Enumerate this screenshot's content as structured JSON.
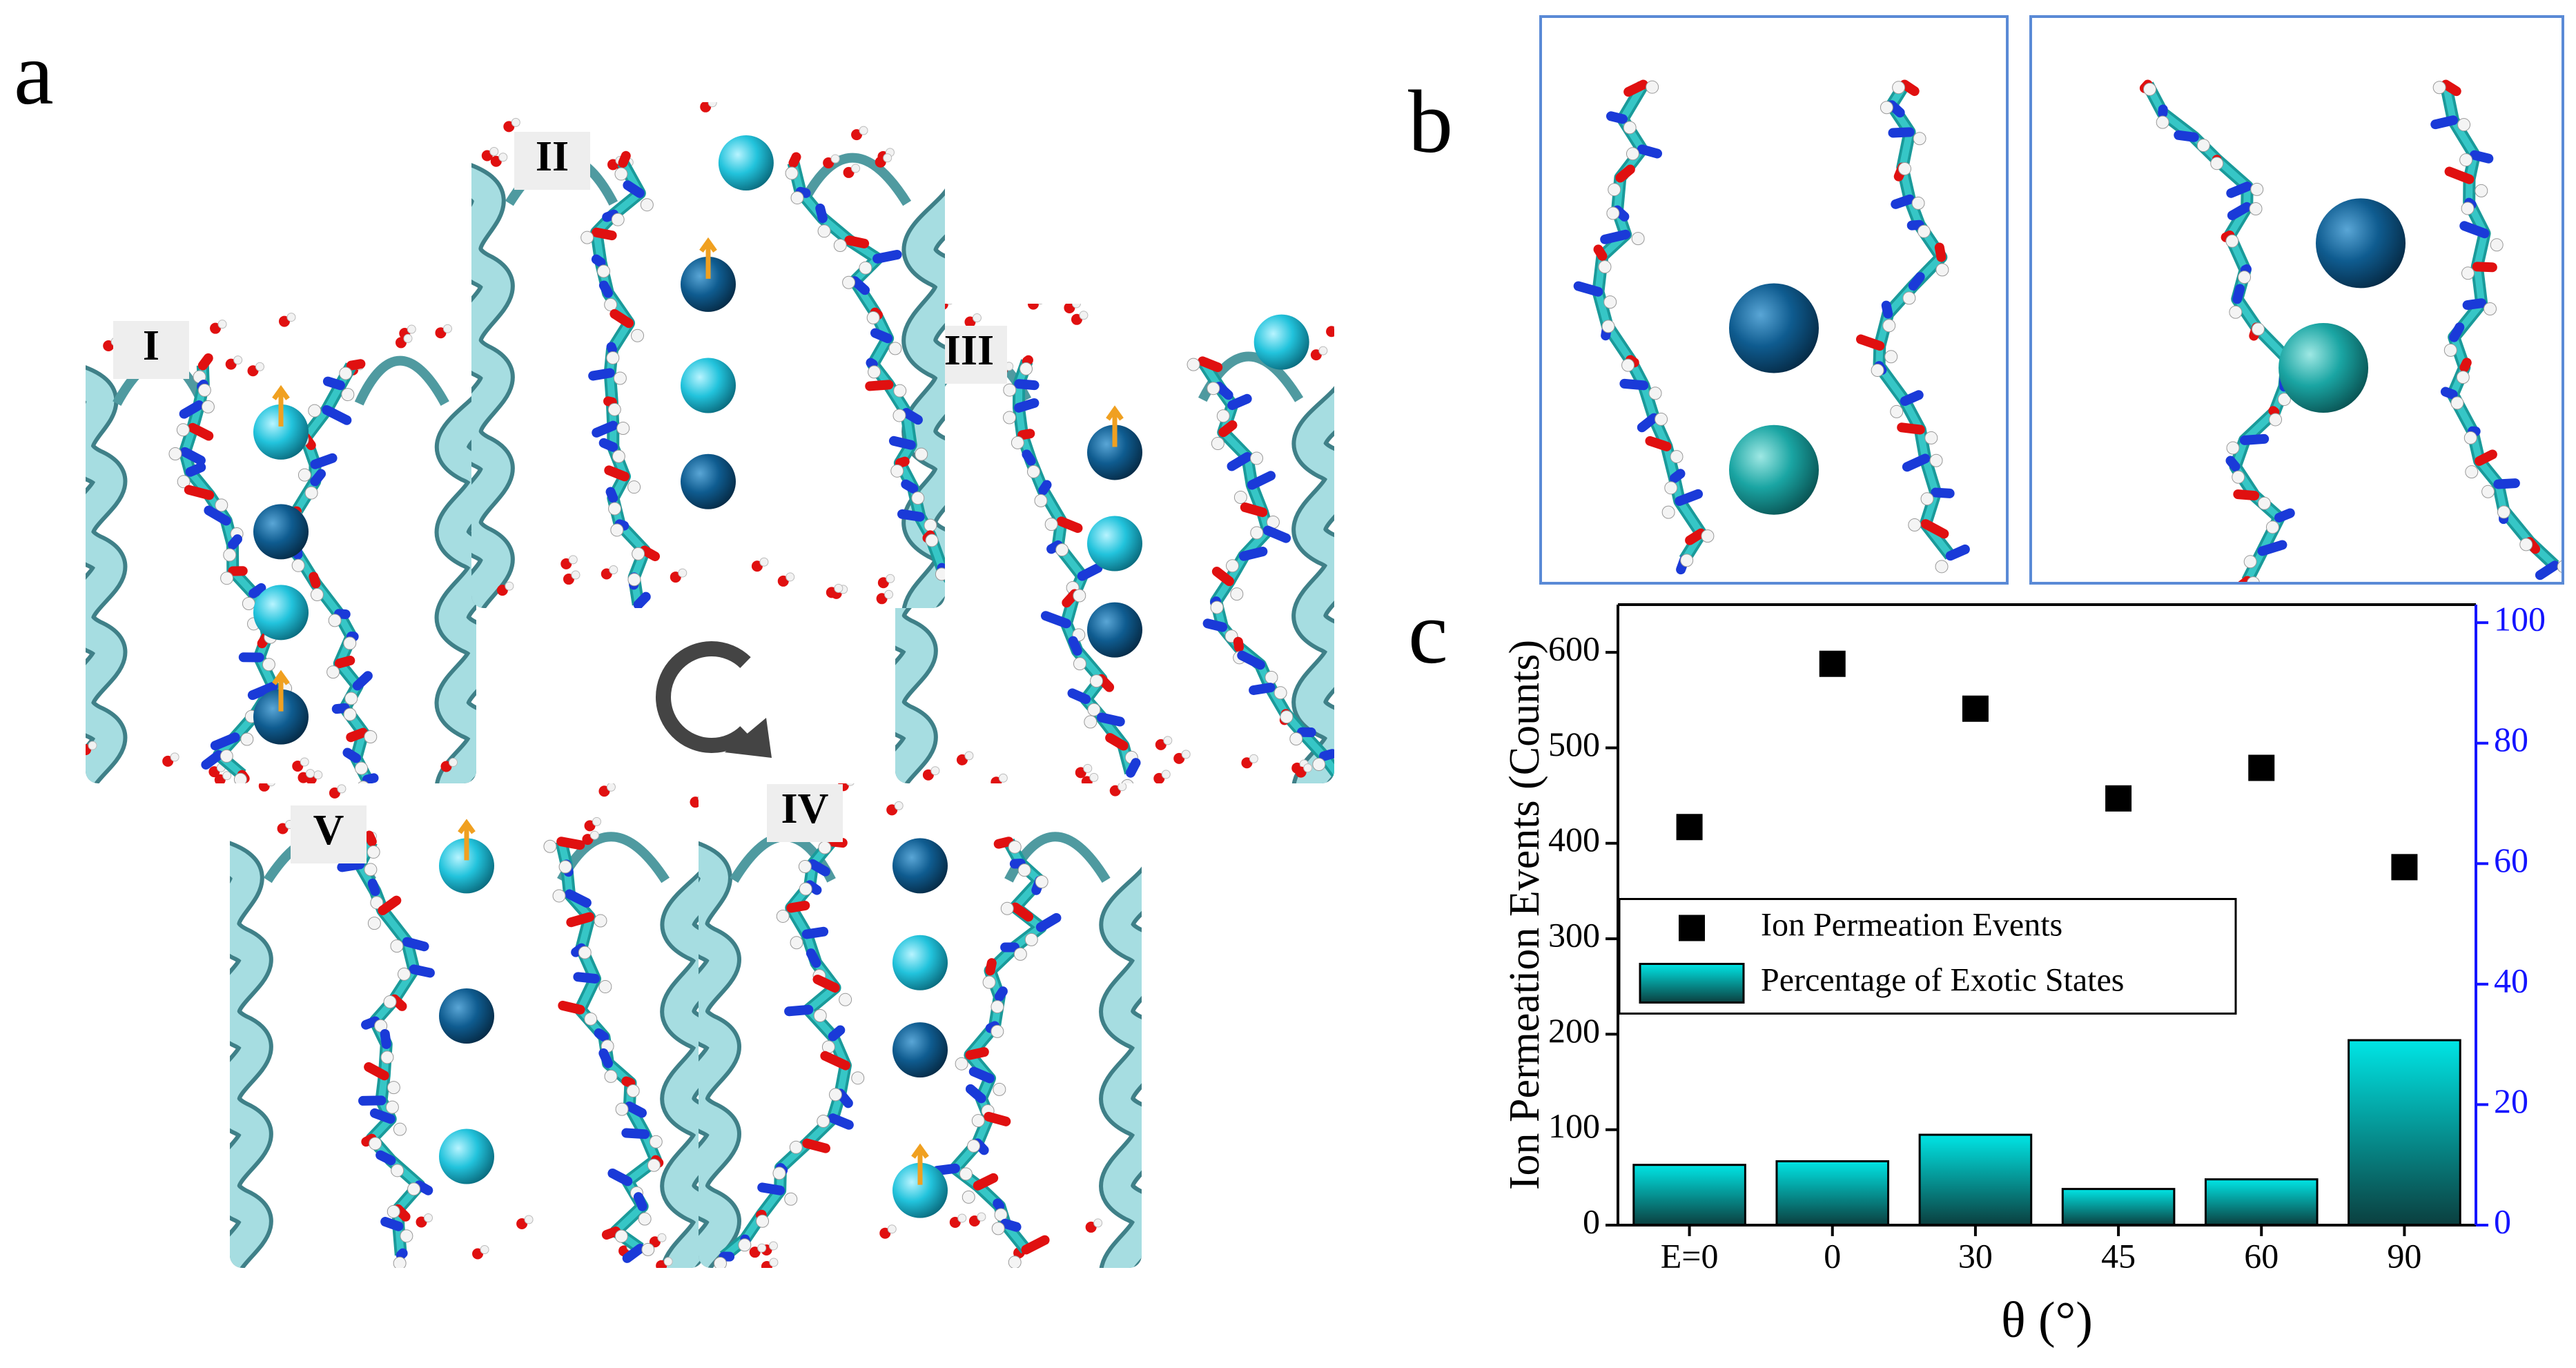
{
  "panel_labels": [
    "a",
    "b",
    "c"
  ],
  "panel_a": {
    "states": [
      "I",
      "II",
      "III",
      "IV",
      "V"
    ]
  },
  "chart_data": {
    "type": "combo",
    "xlabel": "θ (°)",
    "ylabel": "Ion Permeation Events (Counts)",
    "categories": [
      "E=0",
      "0",
      "30",
      "45",
      "60",
      "90"
    ],
    "series": [
      {
        "name": "Ion Permeation Events",
        "type": "scatter",
        "color": "#000000",
        "values": [
          417,
          588,
          541,
          447,
          479,
          375
        ]
      },
      {
        "name": "Percentage of Exotic States",
        "type": "bar",
        "axis": "y2",
        "color": "#00e5e5",
        "values": [
          10,
          10.6,
          15,
          6,
          7.6,
          30.7
        ]
      }
    ],
    "ylim": [
      0,
      650
    ],
    "yticks": [
      0,
      100,
      200,
      300,
      400,
      500,
      600
    ],
    "y2lim": [
      0,
      103
    ],
    "y2ticks": [
      0,
      20,
      40,
      60,
      80,
      100
    ],
    "y2color": "#1414ff",
    "legend": "center left"
  }
}
